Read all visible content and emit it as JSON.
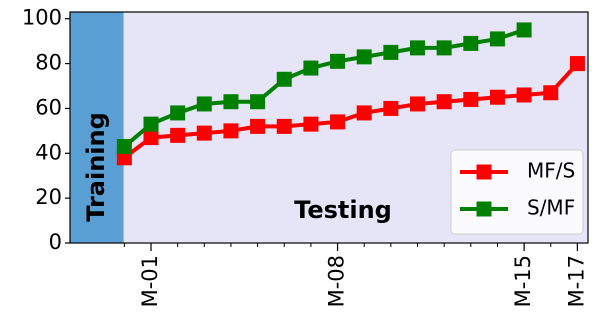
{
  "chart_data": {
    "type": "line",
    "x": [
      0,
      1,
      2,
      3,
      4,
      5,
      6,
      7,
      8,
      9,
      10,
      11,
      12,
      13,
      14,
      15,
      16,
      17
    ],
    "xticks": [
      {
        "x": 1,
        "label": "M-01"
      },
      {
        "x": 8,
        "label": "M-08"
      },
      {
        "x": 15,
        "label": "M-15"
      },
      {
        "x": 17,
        "label": "M-17"
      }
    ],
    "ylim": [
      0,
      103
    ],
    "yticks": [
      0,
      20,
      40,
      60,
      80,
      100
    ],
    "series": [
      {
        "name": "MF/S",
        "color": "#ff0000",
        "x": [
          0,
          1,
          2,
          3,
          4,
          5,
          6,
          7,
          8,
          9,
          10,
          11,
          12,
          13,
          14,
          15,
          16,
          17
        ],
        "values": [
          38,
          47,
          48,
          49,
          50,
          52,
          52,
          53,
          54,
          58,
          60,
          62,
          63,
          64,
          65,
          66,
          67,
          80
        ]
      },
      {
        "name": "S/MF",
        "color": "#008000",
        "x": [
          0,
          1,
          2,
          3,
          4,
          5,
          6,
          7,
          8,
          9,
          10,
          11,
          12,
          13,
          14,
          15
        ],
        "values": [
          43,
          53,
          58,
          62,
          63,
          63,
          73,
          78,
          81,
          83,
          85,
          87,
          87,
          89,
          91,
          95
        ]
      }
    ],
    "regions": {
      "training_label": "Training",
      "testing_label": "Testing",
      "training_color": "#5a9fd4",
      "testing_color": "#e5e5f7"
    },
    "legend_position": "bottom-right",
    "grid": false
  }
}
